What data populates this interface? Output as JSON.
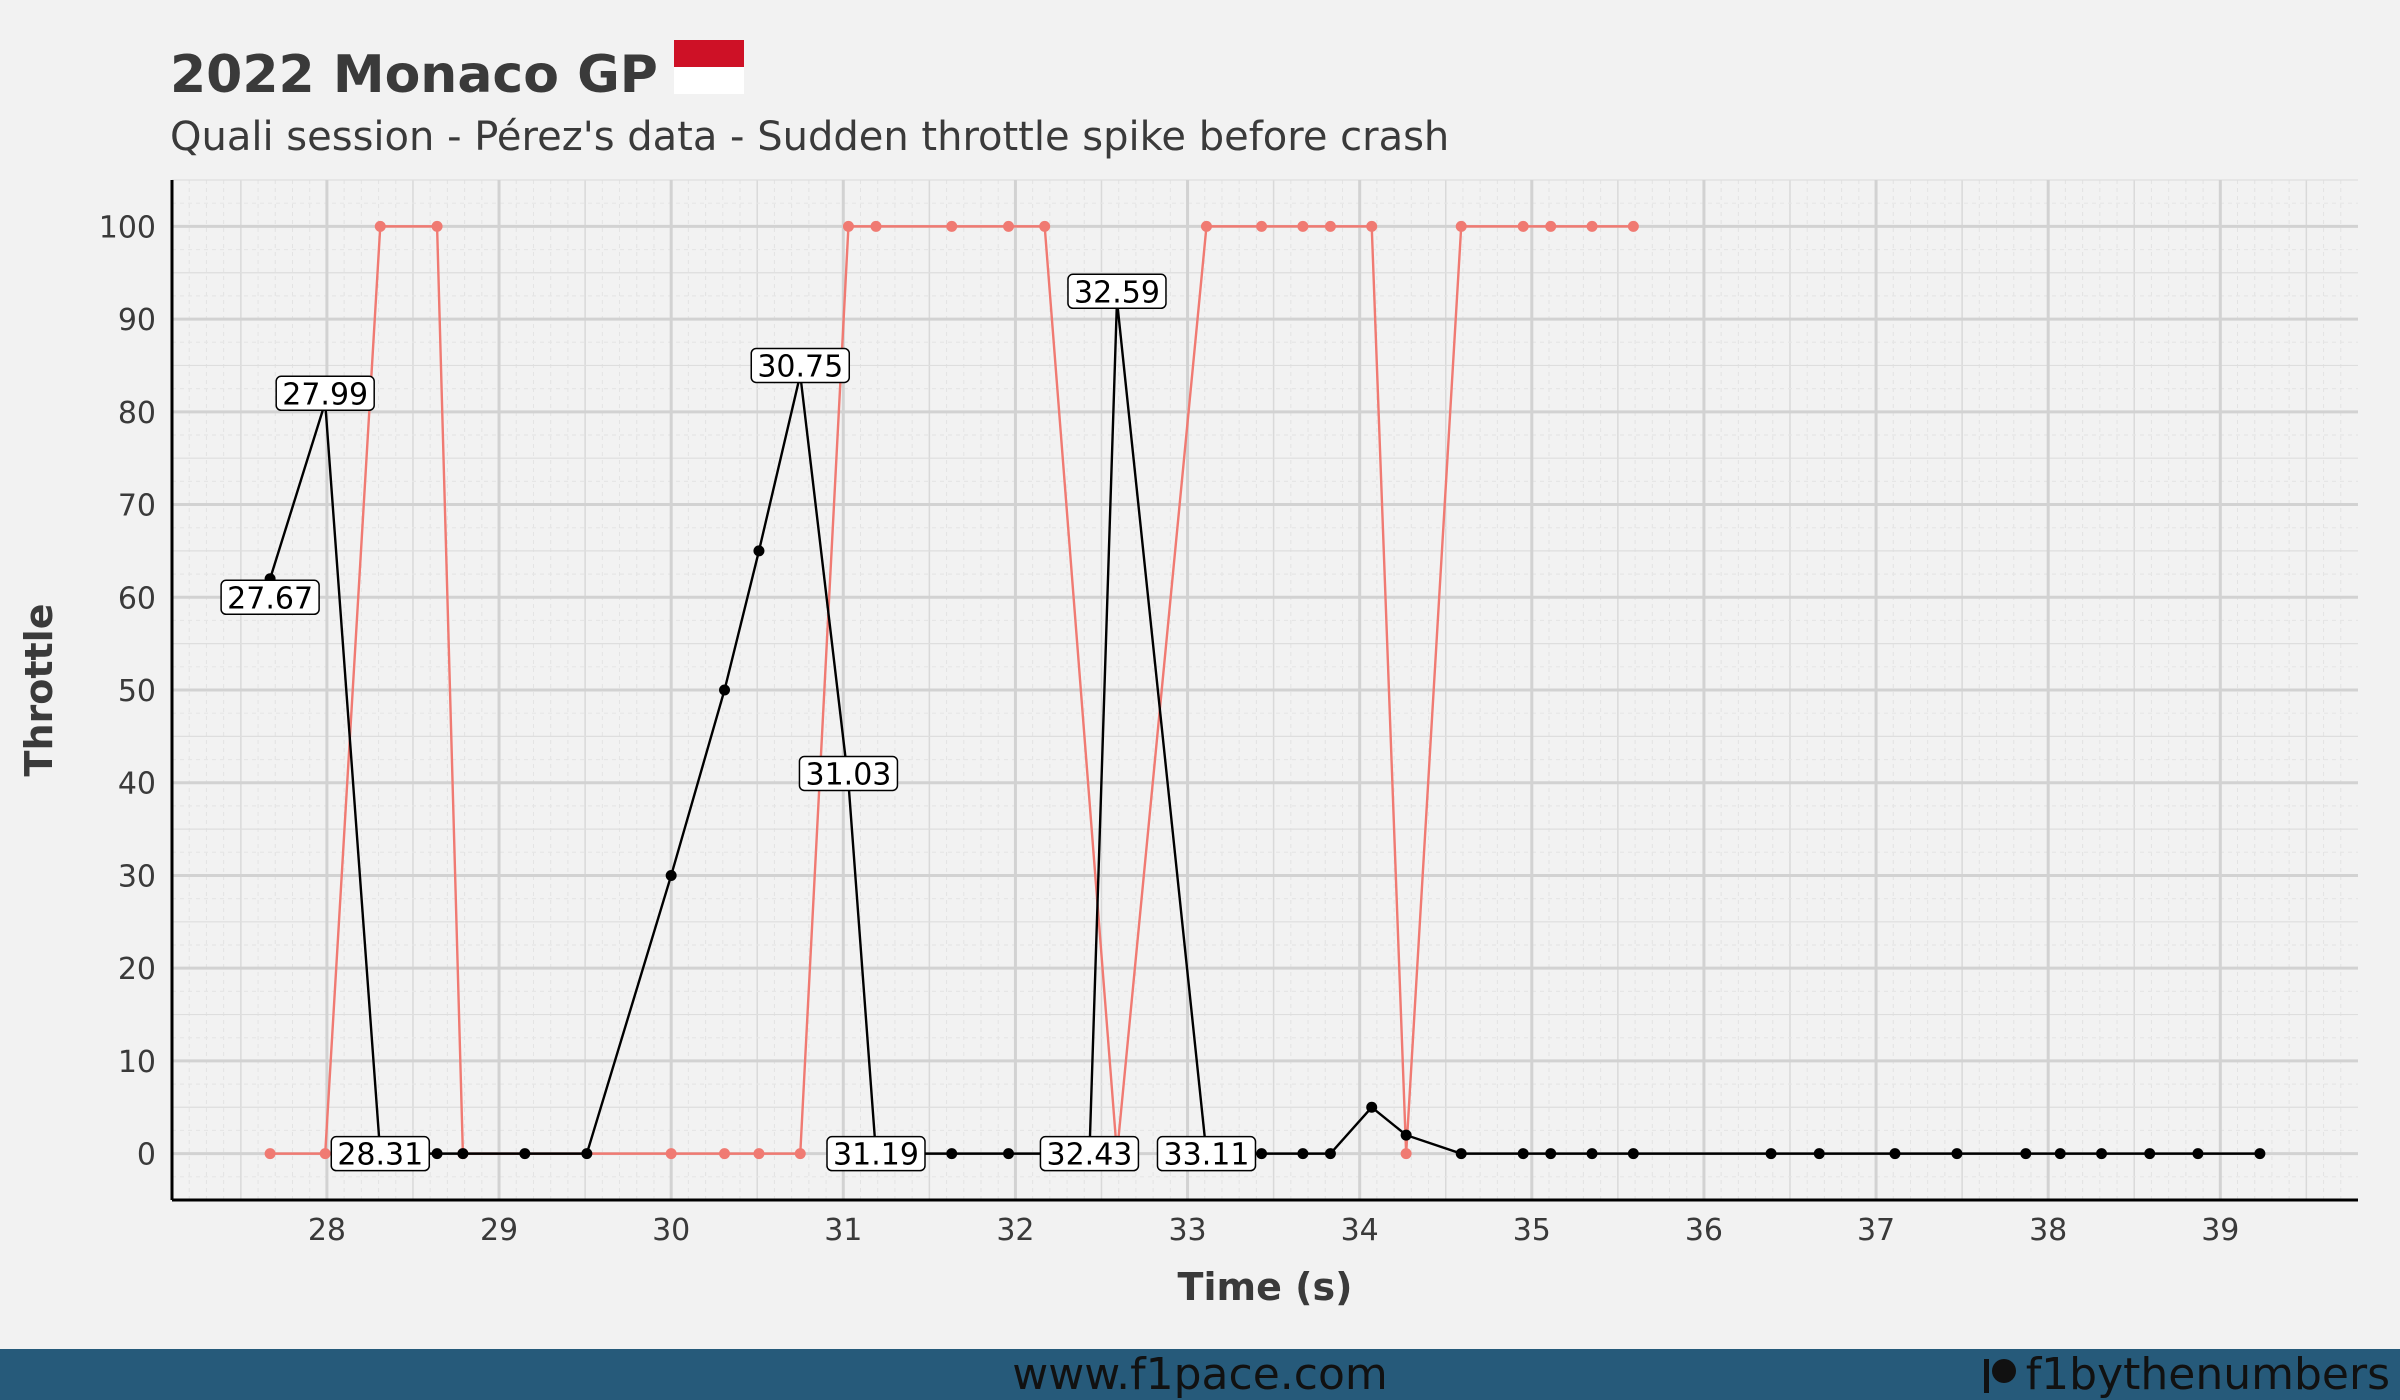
{
  "chart_data": {
    "type": "line",
    "title": "2022 Monaco GP",
    "subtitle": "Quali session - Pérez's data - Sudden throttle spike before crash",
    "xlabel": "Time (s)",
    "ylabel": "Throttle",
    "xlim": [
      27.1,
      39.8
    ],
    "ylim": [
      -5,
      105
    ],
    "x_ticks": [
      28,
      29,
      30,
      31,
      32,
      33,
      34,
      35,
      36,
      37,
      38,
      39
    ],
    "y_ticks": [
      0,
      10,
      20,
      30,
      40,
      50,
      60,
      70,
      80,
      90,
      100
    ],
    "grid": true,
    "flag_colors": [
      "#ce1126",
      "#ffffff"
    ],
    "series": [
      {
        "color": "#f07a72",
        "x": [
          27.67,
          27.99,
          28.31,
          28.64,
          28.79,
          30.0,
          30.31,
          30.51,
          30.75,
          31.03,
          31.19,
          31.63,
          31.96,
          32.17,
          32.59,
          33.11,
          33.43,
          33.67,
          33.83,
          34.07,
          34.27,
          34.59,
          34.95,
          35.11,
          35.35,
          35.59
        ],
        "values": [
          0,
          0,
          100,
          100,
          0,
          0,
          0,
          0,
          0,
          100,
          100,
          100,
          100,
          100,
          0,
          100,
          100,
          100,
          100,
          100,
          0,
          100,
          100,
          100,
          100,
          100
        ]
      },
      {
        "color": "#000000",
        "x": [
          27.67,
          27.99,
          28.31,
          28.64,
          28.79,
          29.15,
          29.51,
          30.0,
          30.31,
          30.51,
          30.75,
          31.03,
          31.19,
          31.63,
          31.96,
          32.43,
          32.59,
          33.11,
          33.43,
          33.67,
          33.83,
          34.07,
          34.27,
          34.59,
          34.95,
          35.11,
          35.35,
          35.59,
          36.39,
          36.67,
          37.11,
          37.47,
          37.87,
          38.07,
          38.31,
          38.59,
          38.87,
          39.23
        ],
        "values": [
          62,
          81,
          0,
          0,
          0,
          0,
          0,
          30,
          50,
          65,
          84,
          40,
          0,
          0,
          0,
          0,
          92,
          0,
          0,
          0,
          0,
          5,
          2,
          0,
          0,
          0,
          0,
          0,
          0,
          0,
          0,
          0,
          0,
          0,
          0,
          0,
          0,
          0
        ]
      }
    ],
    "annotations": [
      {
        "text": "27.67",
        "x": 27.67,
        "y": 62,
        "label_y": 60
      },
      {
        "text": "27.99",
        "x": 27.99,
        "y": 81,
        "label_y": 82
      },
      {
        "text": "28.31",
        "x": 28.31,
        "y": 0,
        "label_y": 0
      },
      {
        "text": "30.75",
        "x": 30.75,
        "y": 84,
        "label_y": 85
      },
      {
        "text": "31.03",
        "x": 31.03,
        "y": 40,
        "label_y": 41
      },
      {
        "text": "31.19",
        "x": 31.19,
        "y": 0,
        "label_y": 0
      },
      {
        "text": "32.59",
        "x": 32.59,
        "y": 92,
        "label_y": 93
      },
      {
        "text": "32.43",
        "x": 32.43,
        "y": 0,
        "label_y": 0
      },
      {
        "text": "33.11",
        "x": 33.11,
        "y": 0,
        "label_y": 0
      }
    ]
  },
  "footer": {
    "url": "www.f1pace.com",
    "brand": "f1bythenumbers"
  }
}
